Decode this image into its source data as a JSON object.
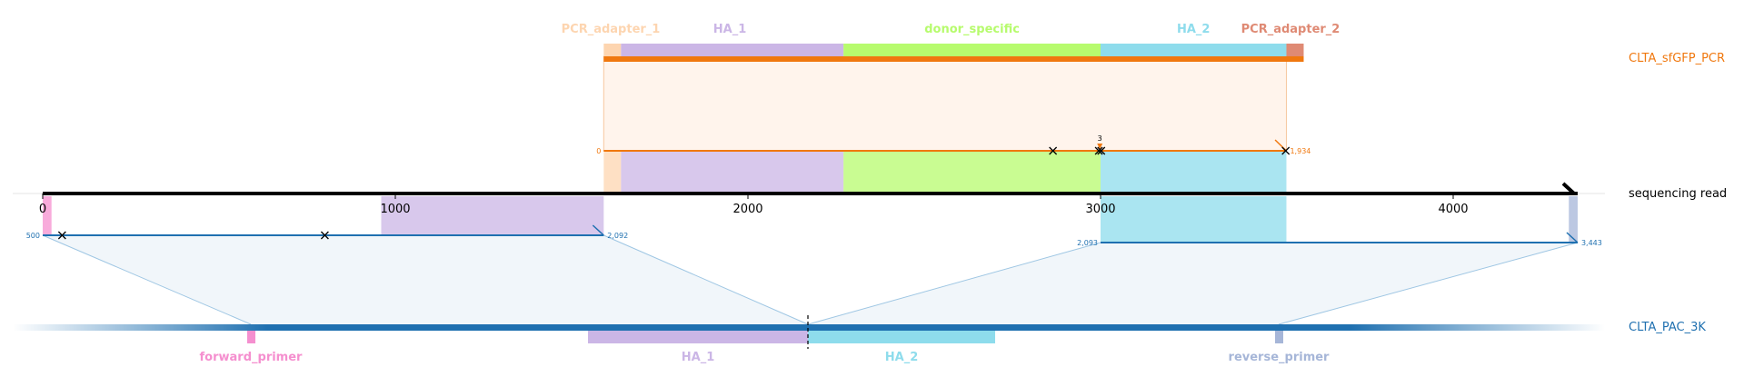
{
  "references": {
    "donor": {
      "name": "CLTA_sfGFP_PCR",
      "color": "#f0780f"
    },
    "read": {
      "name": "sequencing read",
      "color": "#000000"
    },
    "target": {
      "name": "CLTA_PAC_3K",
      "color": "#1f70b0"
    }
  },
  "read_axis": {
    "ticks": [
      {
        "value": 0,
        "label": "0"
      },
      {
        "value": 1000,
        "label": "1000"
      },
      {
        "value": 2000,
        "label": "2000"
      },
      {
        "value": 3000,
        "label": "3000"
      },
      {
        "value": 4000,
        "label": "4000"
      }
    ],
    "length": 4353
  },
  "donor_features": [
    {
      "name": "PCR_adapter_1",
      "label": "PCR_adapter_1",
      "start": 1591,
      "end": 1640,
      "color": "#fdd5b0"
    },
    {
      "name": "HA_1",
      "label": "HA_1",
      "start": 1640,
      "end": 2271,
      "color": "#cbb6e6"
    },
    {
      "name": "donor_specific",
      "label": "donor_specific",
      "start": 2271,
      "end": 3000,
      "color": "#b7fb6e"
    },
    {
      "name": "HA_2",
      "label": "HA_2",
      "start": 3000,
      "end": 3527,
      "color": "#8edcec"
    },
    {
      "name": "PCR_adapter_2",
      "label": "PCR_adapter_2",
      "start": 3527,
      "end": 3576,
      "color": "#df8a74"
    }
  ],
  "donor_alignment": {
    "start_label": "0",
    "end_label": "1,934",
    "mismatch_positions": [
      2865,
      2995,
      3002,
      3525
    ],
    "insertion": {
      "position": 2998,
      "label": "3"
    }
  },
  "target_features": [
    {
      "name": "forward_primer",
      "label": "forward_primer",
      "color": "#f58fcf"
    },
    {
      "name": "HA_1",
      "label": "HA_1",
      "color": "#cbb6e6"
    },
    {
      "name": "HA_2",
      "label": "HA_2",
      "color": "#8edcec"
    },
    {
      "name": "reverse_primer",
      "label": "reverse_primer",
      "color": "#a6b6d8"
    }
  ],
  "target_alignments": [
    {
      "read_start": 0,
      "read_end": 1591,
      "start_label": "500",
      "end_label": "2,092",
      "mismatch_positions": [
        55,
        800
      ]
    },
    {
      "read_start": 3000,
      "read_end": 4353,
      "start_label": "2,093",
      "end_label": "3,443",
      "mismatch_positions": []
    }
  ]
}
